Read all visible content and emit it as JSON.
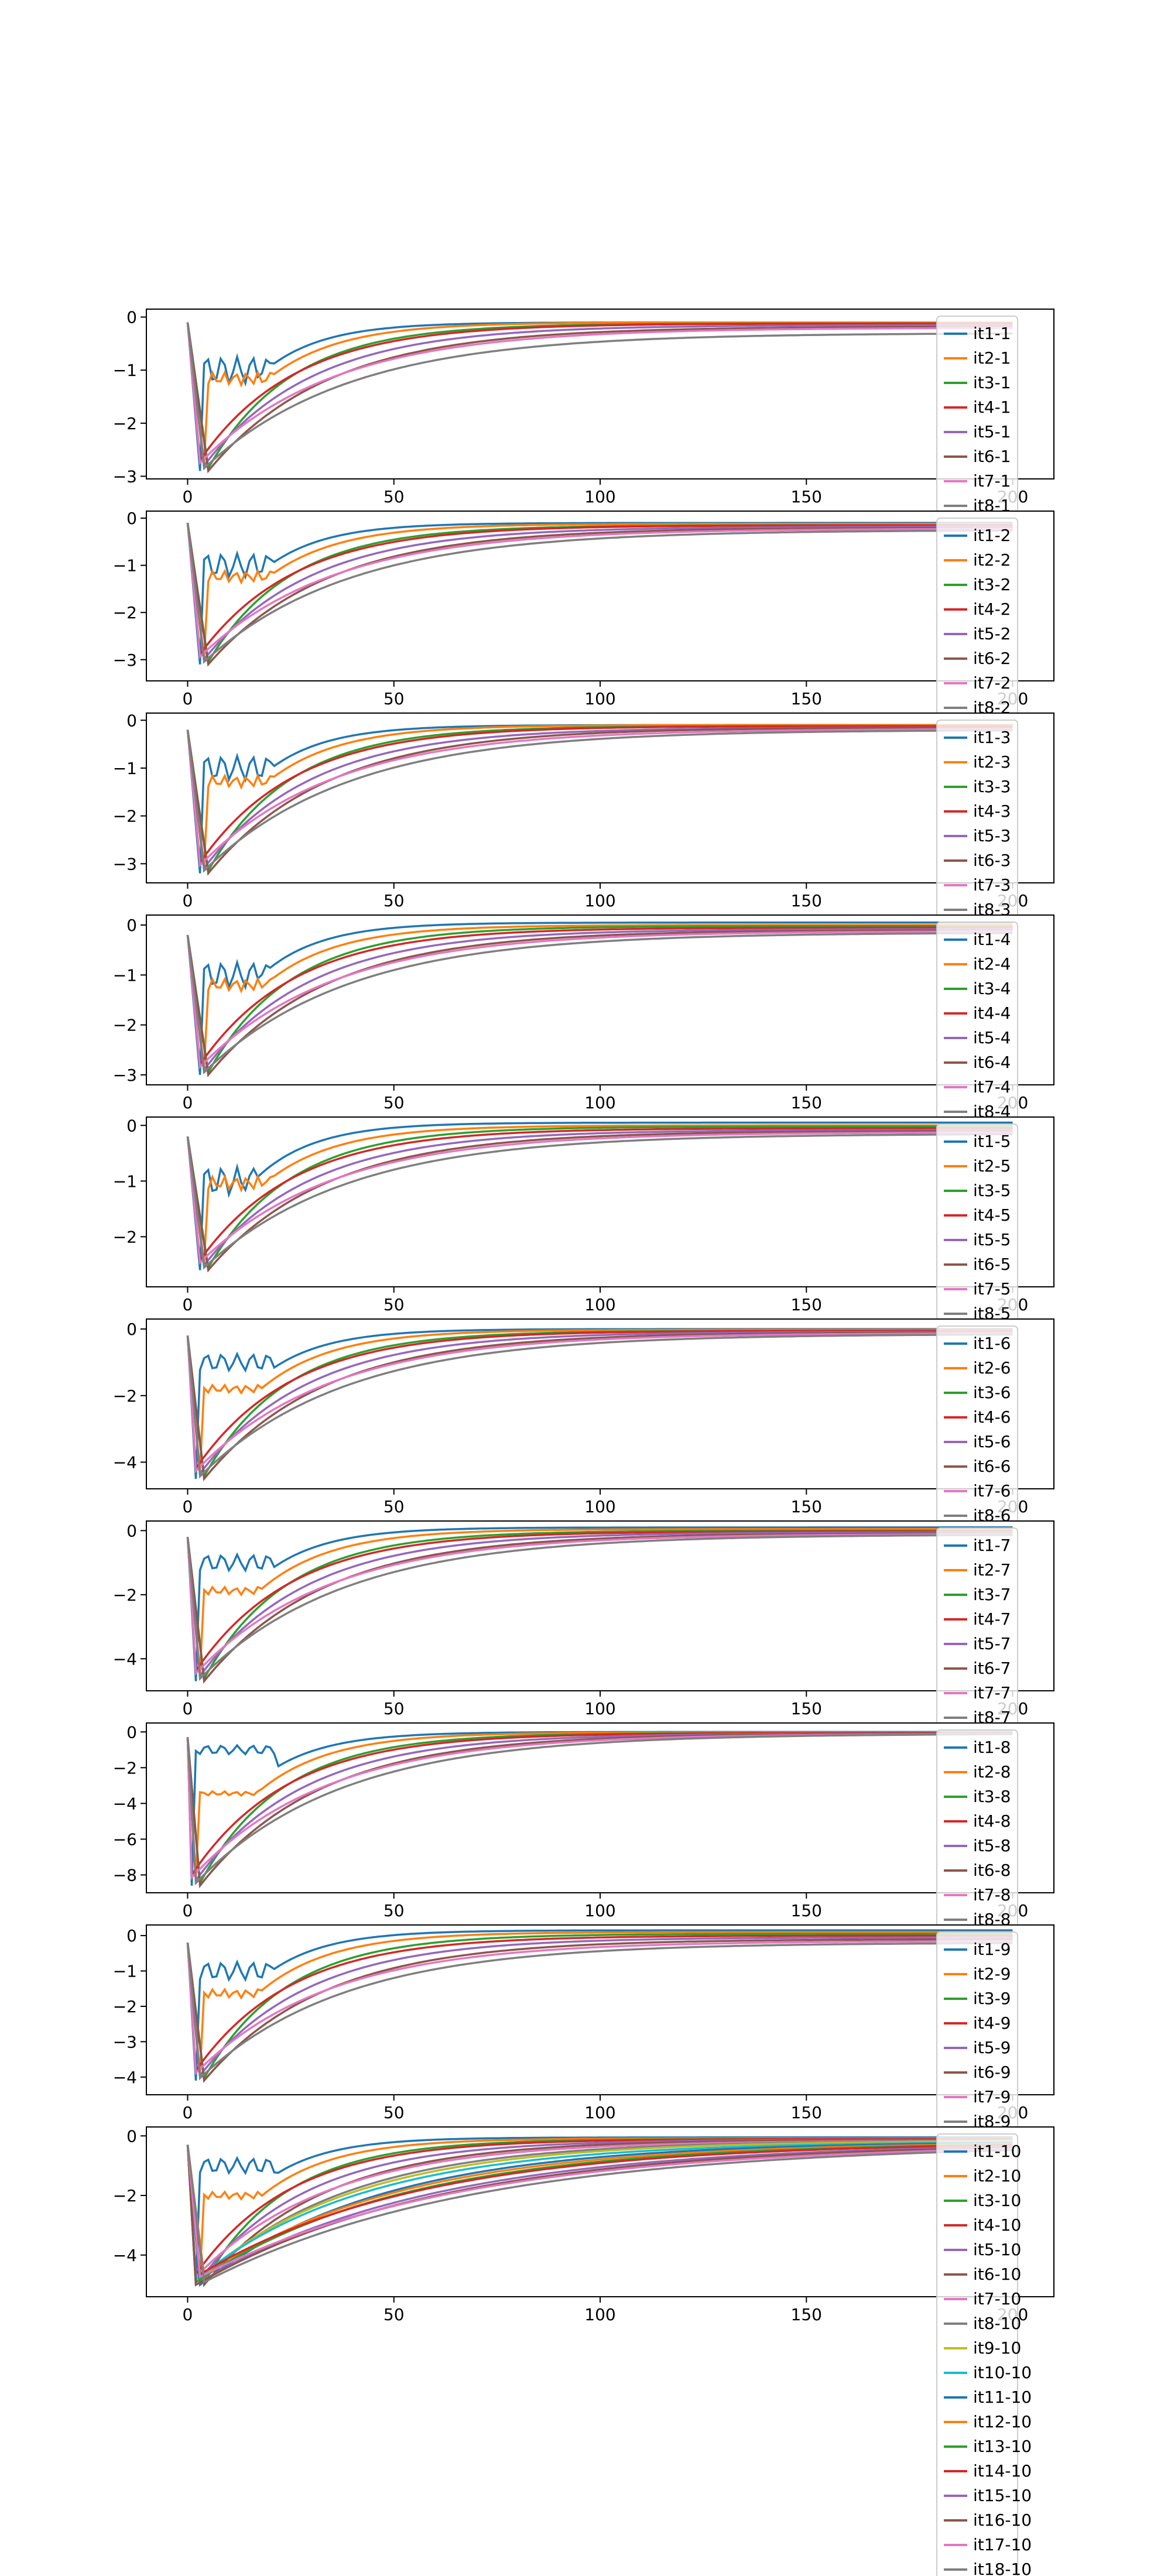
{
  "figure": {
    "background": "#ffffff",
    "frame_color": "#000000"
  },
  "chart_data": [
    {
      "type": "line",
      "title": "",
      "xlabel": "",
      "ylabel": "",
      "xlim": [
        -10,
        210
      ],
      "ylim": [
        -3.05,
        0.15
      ],
      "xticks": [
        0,
        50,
        100,
        150,
        200
      ],
      "yticks": [
        0,
        -1,
        -2,
        -3
      ],
      "xtick_labels": [
        "0",
        "50",
        "100",
        "150",
        "200"
      ],
      "ytick_labels": [
        "0",
        "−1",
        "−2",
        "−3"
      ],
      "grid": false,
      "legend_position": "right, overlapping plot edge",
      "legend": [
        "it1-1",
        "it2-1",
        "it3-1",
        "it4-1",
        "it5-1",
        "it6-1",
        "it7-1",
        "it8-1"
      ],
      "series_summary": {
        "x_range": [
          0,
          200
        ],
        "start_value": -0.1,
        "minimum": {
          "x": 3,
          "y": -2.9
        },
        "end_values": [
          -0.1,
          -0.1,
          -0.12,
          -0.12,
          -0.15,
          -0.18,
          -0.2,
          -0.3
        ]
      }
    },
    {
      "type": "line",
      "title": "",
      "xlabel": "",
      "ylabel": "",
      "xlim": [
        -10,
        210
      ],
      "ylim": [
        -3.45,
        0.15
      ],
      "xticks": [
        0,
        50,
        100,
        150,
        200
      ],
      "yticks": [
        0,
        -1,
        -2,
        -3
      ],
      "xtick_labels": [
        "0",
        "50",
        "100",
        "150",
        "200"
      ],
      "ytick_labels": [
        "0",
        "−1",
        "−2",
        "−3"
      ],
      "grid": false,
      "legend_position": "right, overlapping plot edge",
      "legend": [
        "it1-2",
        "it2-2",
        "it3-2",
        "it4-2",
        "it5-2",
        "it6-2",
        "it7-2",
        "it8-2"
      ],
      "series_summary": {
        "x_range": [
          0,
          200
        ],
        "start_value": -0.1,
        "minimum": {
          "x": 3,
          "y": -3.1
        },
        "end_values": [
          -0.1,
          -0.12,
          -0.15,
          -0.15,
          -0.18,
          -0.2,
          -0.22,
          -0.25
        ]
      }
    },
    {
      "type": "line",
      "title": "",
      "xlabel": "",
      "ylabel": "",
      "xlim": [
        -10,
        210
      ],
      "ylim": [
        -3.4,
        0.15
      ],
      "xticks": [
        0,
        50,
        100,
        150,
        200
      ],
      "yticks": [
        0,
        -1,
        -2,
        -3
      ],
      "xtick_labels": [
        "0",
        "50",
        "100",
        "150",
        "200"
      ],
      "ytick_labels": [
        "0",
        "−1",
        "−2",
        "−3"
      ],
      "grid": false,
      "legend_position": "right, overlapping plot edge",
      "legend": [
        "it1-3",
        "it2-3",
        "it3-3",
        "it4-3",
        "it5-3",
        "it6-3",
        "it7-3",
        "it8-3"
      ],
      "series_summary": {
        "x_range": [
          0,
          200
        ],
        "start_value": -0.2,
        "minimum": {
          "x": 3,
          "y": -3.2
        },
        "end_values": [
          -0.1,
          -0.1,
          -0.12,
          -0.12,
          -0.15,
          -0.15,
          -0.18,
          -0.2
        ]
      }
    },
    {
      "type": "line",
      "title": "",
      "xlabel": "",
      "ylabel": "",
      "xlim": [
        -10,
        210
      ],
      "ylim": [
        -3.2,
        0.2
      ],
      "xticks": [
        0,
        50,
        100,
        150,
        200
      ],
      "yticks": [
        0,
        -1,
        -2,
        -3
      ],
      "xtick_labels": [
        "0",
        "50",
        "100",
        "150",
        "200"
      ],
      "ytick_labels": [
        "0",
        "−1",
        "−2",
        "−3"
      ],
      "grid": false,
      "legend_position": "right, overlapping plot edge",
      "legend": [
        "it1-4",
        "it2-4",
        "it3-4",
        "it4-4",
        "it5-4",
        "it6-4",
        "it7-4",
        "it8-4"
      ],
      "series_summary": {
        "x_range": [
          0,
          200
        ],
        "start_value": -0.2,
        "minimum": {
          "x": 3,
          "y": -3.0
        },
        "end_values": [
          0.05,
          0.0,
          -0.02,
          -0.05,
          -0.08,
          -0.1,
          -0.12,
          -0.15
        ]
      }
    },
    {
      "type": "line",
      "title": "",
      "xlabel": "",
      "ylabel": "",
      "xlim": [
        -10,
        210
      ],
      "ylim": [
        -2.9,
        0.15
      ],
      "xticks": [
        0,
        50,
        100,
        150,
        200
      ],
      "yticks": [
        0,
        -1,
        -2
      ],
      "xtick_labels": [
        "0",
        "50",
        "100",
        "150",
        "200"
      ],
      "ytick_labels": [
        "0",
        "−1",
        "−2"
      ],
      "grid": false,
      "legend_position": "right, overlapping plot edge",
      "legend": [
        "it1-5",
        "it2-5",
        "it3-5",
        "it4-5",
        "it5-5",
        "it6-5",
        "it7-5",
        "it8-5"
      ],
      "series_summary": {
        "x_range": [
          0,
          200
        ],
        "start_value": -0.2,
        "minimum": {
          "x": 3,
          "y": -2.6
        },
        "end_values": [
          0.05,
          0.0,
          -0.02,
          -0.05,
          -0.08,
          -0.1,
          -0.12,
          -0.15
        ]
      }
    },
    {
      "type": "line",
      "title": "",
      "xlabel": "",
      "ylabel": "",
      "xlim": [
        -10,
        210
      ],
      "ylim": [
        -4.8,
        0.3
      ],
      "xticks": [
        0,
        50,
        100,
        150,
        200
      ],
      "yticks": [
        0,
        -2,
        -4
      ],
      "xtick_labels": [
        "0",
        "50",
        "100",
        "150",
        "200"
      ],
      "ytick_labels": [
        "0",
        "−2",
        "−4"
      ],
      "grid": false,
      "legend_position": "right, overlapping plot edge",
      "legend": [
        "it1-6",
        "it2-6",
        "it3-6",
        "it4-6",
        "it5-6",
        "it6-6",
        "it7-6",
        "it8-6"
      ],
      "series_summary": {
        "x_range": [
          0,
          200
        ],
        "start_value": -0.2,
        "minimum": {
          "x": 2,
          "y": -4.5
        },
        "end_values": [
          0.0,
          -0.02,
          -0.05,
          -0.05,
          -0.08,
          -0.1,
          -0.12,
          -0.15
        ]
      }
    },
    {
      "type": "line",
      "title": "",
      "xlabel": "",
      "ylabel": "",
      "xlim": [
        -10,
        210
      ],
      "ylim": [
        -5.0,
        0.3
      ],
      "xticks": [
        0,
        50,
        100,
        150,
        200
      ],
      "yticks": [
        0,
        -2,
        -4
      ],
      "xtick_labels": [
        "0",
        "50",
        "100",
        "150",
        "200"
      ],
      "ytick_labels": [
        "0",
        "−2",
        "−4"
      ],
      "grid": false,
      "legend_position": "right, overlapping plot edge",
      "legend": [
        "it1-7",
        "it2-7",
        "it3-7",
        "it4-7",
        "it5-7",
        "it6-7",
        "it7-7",
        "it8-7"
      ],
      "series_summary": {
        "x_range": [
          0,
          200
        ],
        "start_value": -0.2,
        "minimum": {
          "x": 2,
          "y": -4.7
        },
        "end_values": [
          0.1,
          0.05,
          0.0,
          -0.02,
          -0.05,
          -0.08,
          -0.1,
          -0.12
        ]
      }
    },
    {
      "type": "line",
      "title": "",
      "xlabel": "",
      "ylabel": "",
      "xlim": [
        -10,
        210
      ],
      "ylim": [
        -9.0,
        0.5
      ],
      "xticks": [
        0,
        50,
        100,
        150,
        200
      ],
      "yticks": [
        0,
        -2,
        -4,
        -6,
        -8
      ],
      "xtick_labels": [
        "0",
        "50",
        "100",
        "150",
        "200"
      ],
      "ytick_labels": [
        "0",
        "−2",
        "−4",
        "−6",
        "−8"
      ],
      "grid": false,
      "legend_position": "right, overlapping plot edge",
      "legend": [
        "it1-8",
        "it2-8",
        "it3-8",
        "it4-8",
        "it5-8",
        "it6-8",
        "it7-8",
        "it8-8"
      ],
      "series_summary": {
        "x_range": [
          0,
          200
        ],
        "start_value": -0.3,
        "minimum": {
          "x": 1,
          "y": -8.6
        },
        "end_values": [
          0.0,
          -0.02,
          -0.05,
          -0.05,
          -0.08,
          -0.08,
          -0.1,
          -0.1
        ]
      }
    },
    {
      "type": "line",
      "title": "",
      "xlabel": "",
      "ylabel": "",
      "xlim": [
        -10,
        210
      ],
      "ylim": [
        -4.5,
        0.3
      ],
      "xticks": [
        0,
        50,
        100,
        150,
        200
      ],
      "yticks": [
        0,
        -1,
        -2,
        -3,
        -4
      ],
      "xtick_labels": [
        "0",
        "50",
        "100",
        "150",
        "200"
      ],
      "ytick_labels": [
        "0",
        "−1",
        "−2",
        "−3",
        "−4"
      ],
      "grid": false,
      "legend_position": "right, overlapping plot edge",
      "legend": [
        "it1-9",
        "it2-9",
        "it3-9",
        "it4-9",
        "it5-9",
        "it6-9",
        "it7-9",
        "it8-9"
      ],
      "series_summary": {
        "x_range": [
          0,
          200
        ],
        "start_value": -0.2,
        "minimum": {
          "x": 2,
          "y": -4.1
        },
        "end_values": [
          0.15,
          0.1,
          0.05,
          0.0,
          -0.05,
          -0.1,
          -0.15,
          -0.2
        ]
      }
    },
    {
      "type": "line",
      "title": "",
      "xlabel": "",
      "ylabel": "",
      "xlim": [
        -10,
        210
      ],
      "ylim": [
        -5.4,
        0.3
      ],
      "xticks": [
        0,
        50,
        100,
        150,
        200
      ],
      "yticks": [
        0,
        -2,
        -4
      ],
      "xtick_labels": [
        "0",
        "50",
        "100",
        "150",
        "200"
      ],
      "ytick_labels": [
        "0",
        "−2",
        "−4"
      ],
      "grid": false,
      "legend_position": "right, overlapping plot edge",
      "legend": [
        "it1-10",
        "it2-10",
        "it3-10",
        "it4-10",
        "it5-10",
        "it6-10",
        "it7-10",
        "it8-10",
        "it9-10",
        "it10-10",
        "it11-10",
        "it12-10",
        "it13-10",
        "it14-10",
        "it15-10",
        "it16-10",
        "it17-10",
        "it18-10"
      ],
      "series_summary": {
        "x_range": [
          0,
          200
        ],
        "start_value": -0.3,
        "minimum": {
          "x": 2,
          "y": -5.0
        },
        "end_values": [
          -0.05,
          -0.08,
          -0.1,
          -0.1,
          -0.12,
          -0.12,
          -0.15,
          -0.15,
          -0.15,
          -0.18,
          -0.18,
          -0.2,
          -0.2,
          -0.2,
          -0.22,
          -0.22,
          -0.25,
          -0.25
        ]
      }
    }
  ],
  "colors": [
    "#1f77b4",
    "#ff7f0e",
    "#2ca02c",
    "#d62728",
    "#9467bd",
    "#8c564b",
    "#e377c2",
    "#7f7f7f",
    "#bcbd22",
    "#17becf"
  ]
}
